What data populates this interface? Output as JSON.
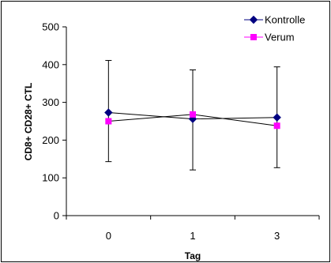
{
  "chart_data": {
    "type": "line",
    "categories": [
      "0",
      "1",
      "3"
    ],
    "xlabel": "Tag",
    "ylabel": "CD8+ CD28+ CTL",
    "ylim": [
      0,
      500
    ],
    "yticks": [
      0,
      100,
      200,
      300,
      400,
      500
    ],
    "grid": false,
    "legend_position": "top-right",
    "series": [
      {
        "name": "Kontrolle",
        "values": [
          273,
          256,
          260
        ],
        "error_low": [
          143,
          121,
          127
        ],
        "error_high": [
          411,
          386,
          394
        ],
        "color": "#000080",
        "marker": "diamond"
      },
      {
        "name": "Verum",
        "values": [
          250,
          268,
          238
        ],
        "color": "#ff00ff",
        "marker": "square"
      }
    ]
  }
}
